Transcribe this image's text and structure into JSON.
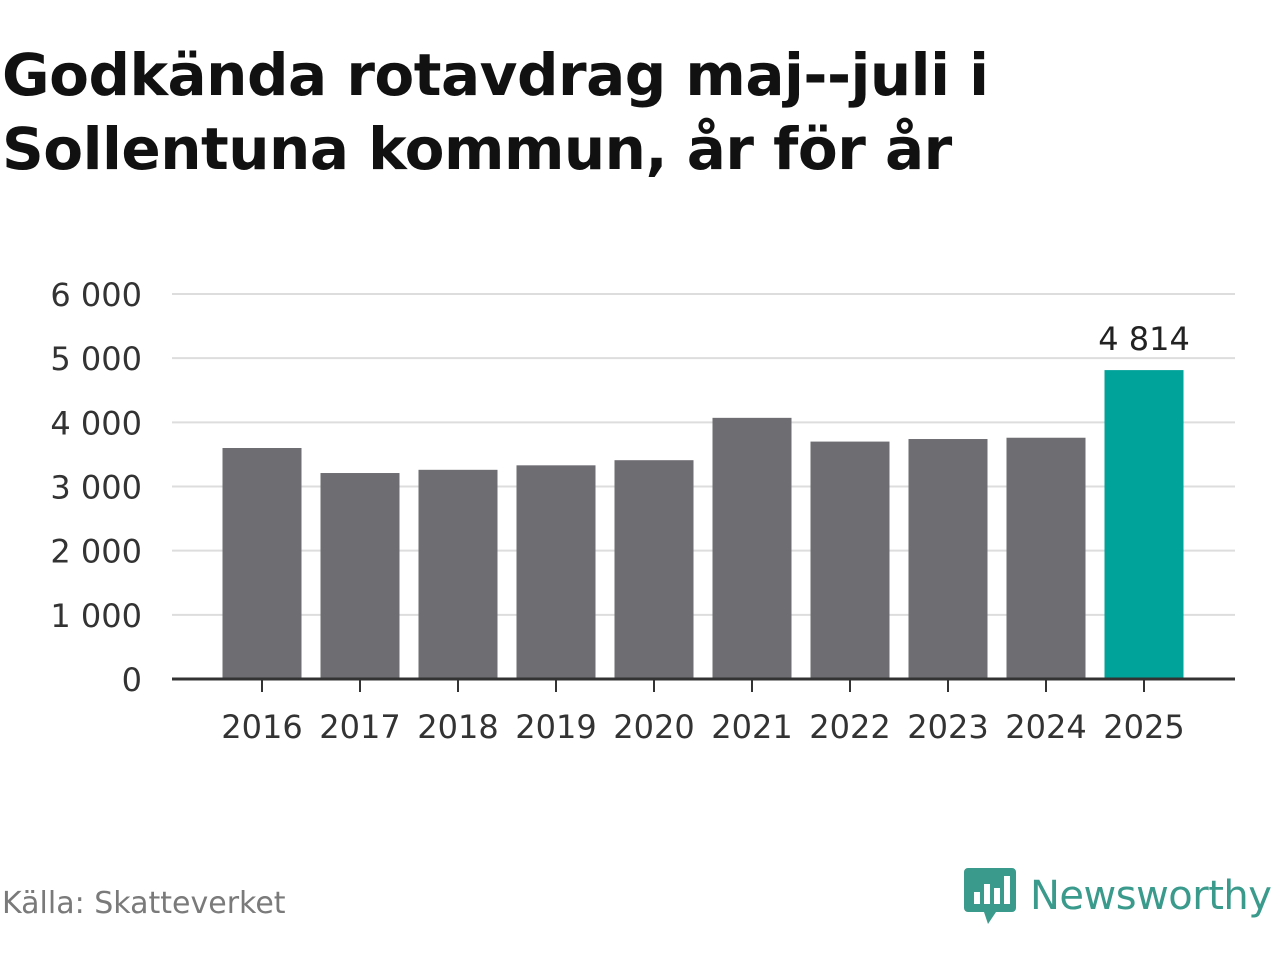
{
  "title": "Godkända rotavdrag maj--juli i Sollentuna kommun, år för år",
  "source": "Källa: Skatteverket",
  "brand": {
    "name": "Newsworthy",
    "icon": "newsworthy-logo-icon",
    "color": "#3a9a8c"
  },
  "chart_data": {
    "type": "bar",
    "title": "Godkända rotavdrag maj--juli i Sollentuna kommun, år för år",
    "xlabel": "",
    "ylabel": "",
    "categories": [
      "2016",
      "2017",
      "2018",
      "2019",
      "2020",
      "2021",
      "2022",
      "2023",
      "2024",
      "2025"
    ],
    "values": [
      3600,
      3210,
      3260,
      3330,
      3410,
      4070,
      3700,
      3740,
      3760,
      4814
    ],
    "ylim": [
      0,
      6000
    ],
    "yticks": [
      0,
      1000,
      2000,
      3000,
      4000,
      5000,
      6000
    ],
    "ytick_labels": [
      "0",
      "1 000",
      "2 000",
      "3 000",
      "4 000",
      "5 000",
      "6 000"
    ],
    "grid": true,
    "colors": {
      "default": "#6e6d72",
      "highlight": "#00a39a"
    },
    "highlight_index": 9,
    "data_labels": [
      {
        "index": 9,
        "text": "4 814"
      }
    ]
  }
}
